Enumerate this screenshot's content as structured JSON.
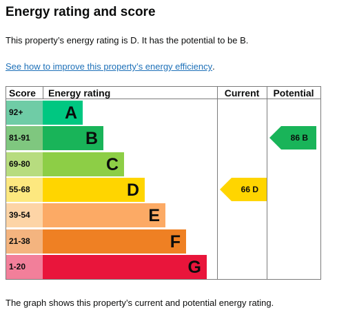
{
  "heading": "Energy rating and score",
  "summary": "This property’s energy rating is D. It has the potential to be B.",
  "improve_link": "See how to improve this property’s energy efficiency",
  "improve_link_suffix": ".",
  "caption": "The graph shows this property’s current and potential energy rating.",
  "table": {
    "headers": {
      "score": "Score",
      "rating": "Energy rating",
      "current": "Current",
      "potential": "Potential"
    },
    "bands": [
      {
        "score": "92+",
        "letter": "A",
        "score_bg": "#6fcca6",
        "bar_color": "#00c781"
      },
      {
        "score": "81-91",
        "letter": "B",
        "score_bg": "#7fc77f",
        "bar_color": "#19b459"
      },
      {
        "score": "69-80",
        "letter": "C",
        "score_bg": "#b7dc7f",
        "bar_color": "#8dce46"
      },
      {
        "score": "55-68",
        "letter": "D",
        "score_bg": "#fde87f",
        "bar_color": "#ffd500"
      },
      {
        "score": "39-54",
        "letter": "E",
        "score_bg": "#fdd4a6",
        "bar_color": "#fcaa65"
      },
      {
        "score": "21-38",
        "letter": "F",
        "score_bg": "#f4b47f",
        "bar_color": "#ef8023"
      },
      {
        "score": "1-20",
        "letter": "G",
        "score_bg": "#f27f9a",
        "bar_color": "#e9153b"
      }
    ],
    "current": {
      "label": "66  D",
      "score": 66,
      "band": "D",
      "color": "#ffd500"
    },
    "potential": {
      "label": "86  B",
      "score": 86,
      "band": "B",
      "color": "#19b459"
    }
  }
}
